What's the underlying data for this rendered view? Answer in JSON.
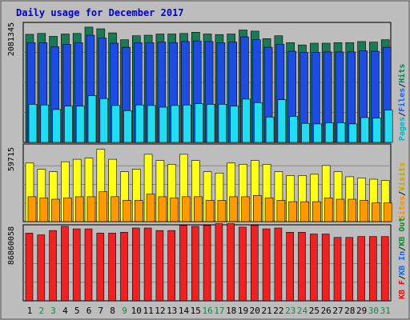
{
  "chart_data": {
    "type": "bar",
    "title": "Daily usage for December 2017",
    "categories": [
      "1",
      "2",
      "3",
      "4",
      "5",
      "6",
      "7",
      "8",
      "9",
      "10",
      "11",
      "12",
      "13",
      "14",
      "15",
      "16",
      "17",
      "18",
      "19",
      "20",
      "21",
      "22",
      "23",
      "24",
      "25",
      "26",
      "27",
      "28",
      "29",
      "30",
      "31"
    ],
    "weekend_days": [
      "2",
      "3",
      "9",
      "16",
      "17",
      "23",
      "24",
      "30",
      "31"
    ],
    "panels": [
      {
        "name": "pages-files-hits",
        "axis_max_label": "2081345",
        "ymax": 2081345,
        "series": [
          {
            "name": "Hits",
            "color": "#1b7a55",
            "values": [
              1875000,
              1890000,
              1840000,
              1880000,
              1890000,
              2000000,
              1970000,
              1900000,
              1780000,
              1850000,
              1860000,
              1880000,
              1880000,
              1890000,
              1910000,
              1880000,
              1870000,
              1880000,
              1950000,
              1930000,
              1800000,
              1850000,
              1730000,
              1690000,
              1720000,
              1720000,
              1730000,
              1730000,
              1750000,
              1740000,
              1780000
            ]
          },
          {
            "name": "Files",
            "color": "#1e4be0",
            "values": [
              1730000,
              1730000,
              1660000,
              1700000,
              1730000,
              1860000,
              1810000,
              1720000,
              1650000,
              1730000,
              1730000,
              1740000,
              1730000,
              1750000,
              1760000,
              1750000,
              1730000,
              1740000,
              1830000,
              1780000,
              1650000,
              1700000,
              1580000,
              1560000,
              1560000,
              1570000,
              1570000,
              1570000,
              1590000,
              1580000,
              1650000
            ]
          },
          {
            "name": "Pages",
            "color": "#22dcf2",
            "values": [
              660000,
              650000,
              570000,
              630000,
              630000,
              810000,
              760000,
              640000,
              550000,
              650000,
              640000,
              610000,
              640000,
              650000,
              670000,
              660000,
              660000,
              630000,
              750000,
              690000,
              440000,
              740000,
              450000,
              330000,
              320000,
              340000,
              340000,
              320000,
              430000,
              420000,
              560000
            ]
          }
        ],
        "legend": [
          "Pages",
          "Files",
          "Hits"
        ]
      },
      {
        "name": "visits-sites",
        "axis_max_label": "59715",
        "ymax": 59715,
        "series": [
          {
            "name": "Visits",
            "color": "#ffff1a",
            "values": [
              47000,
              42000,
              40000,
              48000,
              50000,
              51000,
              58000,
              50000,
              40000,
              42000,
              54000,
              49000,
              46000,
              54000,
              49000,
              40000,
              39000,
              47000,
              46000,
              49000,
              46000,
              40000,
              37000,
              37000,
              38000,
              45000,
              40000,
              36000,
              35000,
              34000,
              33000
            ]
          },
          {
            "name": "Sites",
            "color": "#ff9900",
            "values": [
              20000,
              19000,
              18000,
              19000,
              20000,
              20000,
              24000,
              20000,
              17000,
              17000,
              22000,
              20000,
              19000,
              20000,
              20000,
              17000,
              17000,
              20000,
              20000,
              21000,
              19000,
              17000,
              16000,
              16000,
              16000,
              19000,
              18000,
              18000,
              17000,
              15000,
              15000
            ]
          }
        ],
        "legend": [
          "Sites",
          "Visits"
        ]
      },
      {
        "name": "kbf-kbin-kbout",
        "axis_max_label": "86860058",
        "ymax": 86860058,
        "series": [
          {
            "name": "KB F",
            "color": "#ee2222",
            "values": [
              79000000,
              77000000,
              82000000,
              87000000,
              84000000,
              84000000,
              79000000,
              79000000,
              80000000,
              85000000,
              85000000,
              82000000,
              82000000,
              88000000,
              87000000,
              88000000,
              90000000,
              90000000,
              86000000,
              88000000,
              84000000,
              85000000,
              80000000,
              80000000,
              78000000,
              78000000,
              74000000,
              74000000,
              75000000,
              75000000,
              75000000
            ]
          }
        ],
        "legend": [
          "KB F",
          "KB In",
          "KB Out"
        ]
      }
    ],
    "legend_colors": {
      "Pages": "#00b8c8",
      "Files": "#1e62e0",
      "Hits": "#0f7f5a",
      "Sites": "#ff8c00",
      "Visits": "#c8a000",
      "KB F": "#e01010",
      "KB In": "#1e62e0",
      "KB Out": "#0f8a30",
      "separator": "#111111"
    },
    "colors": {
      "background": "#bdbdbd",
      "panel_border": "#1a1a1a",
      "title": "#0000cc",
      "weekday_label": "#000000",
      "weekend_label": "#14864a"
    }
  }
}
